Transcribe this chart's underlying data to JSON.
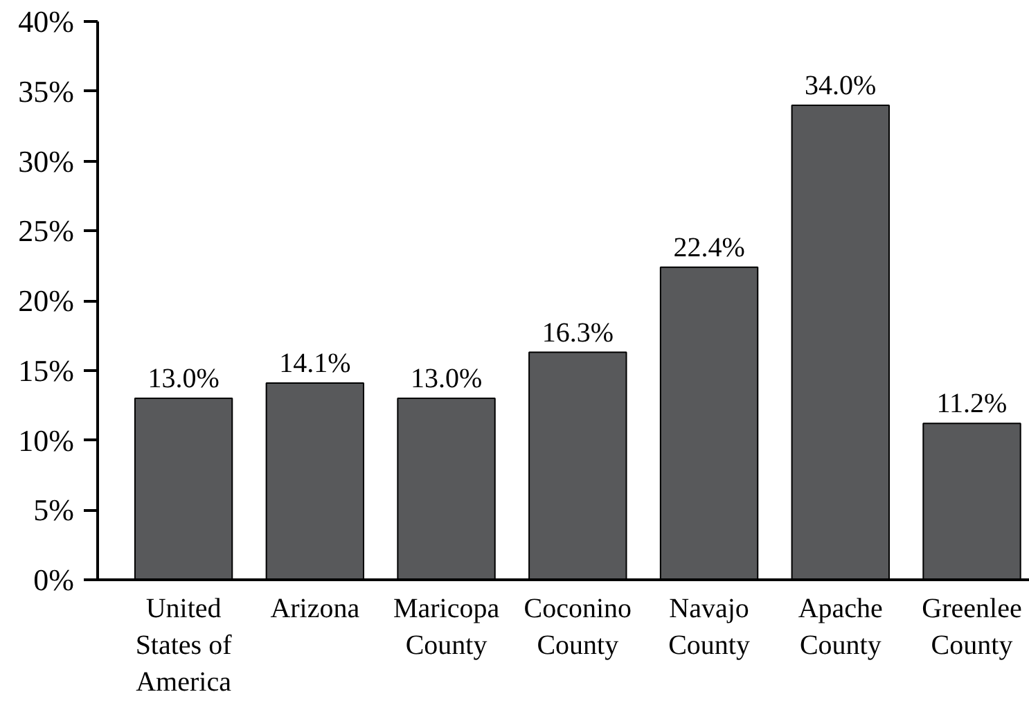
{
  "chart_data": {
    "type": "bar",
    "categories": [
      "United States of America",
      "Arizona",
      "Maricopa County",
      "Coconino County",
      "Navajo County",
      "Apache County",
      "Greenlee County"
    ],
    "values": [
      13.0,
      14.1,
      13.0,
      16.3,
      22.4,
      34.0,
      11.2
    ],
    "value_labels": [
      "13.0%",
      "14.1%",
      "13.0%",
      "16.3%",
      "22.4%",
      "34.0%",
      "11.2%"
    ],
    "color": "#58595b",
    "ylim": [
      0,
      40
    ],
    "yticks": [
      {
        "value": 0,
        "label": "0%"
      },
      {
        "value": 5,
        "label": "5%"
      },
      {
        "value": 10,
        "label": "10%"
      },
      {
        "value": 15,
        "label": "15%"
      },
      {
        "value": 20,
        "label": "20%"
      },
      {
        "value": 25,
        "label": "25%"
      },
      {
        "value": 30,
        "label": "30%"
      },
      {
        "value": 35,
        "label": "35%"
      },
      {
        "value": 40,
        "label": "40%"
      }
    ],
    "grid": false
  }
}
